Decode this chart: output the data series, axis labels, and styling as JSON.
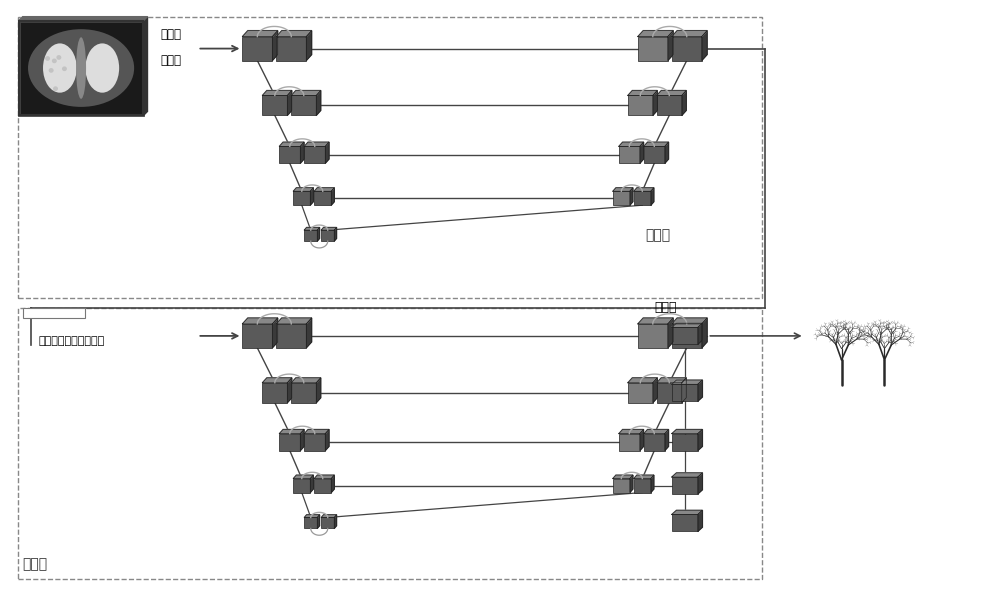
{
  "bg_color": "#ffffff",
  "box_color": "#5a5a5a",
  "box_color_light": "#7a7a7a",
  "line_color": "#444444",
  "dashed_color": "#888888",
  "stage1_label": "阶段一",
  "stage2_label": "阶段二",
  "resample_label": "重采样",
  "normalize_label": "归一化",
  "clip_label": "剪切，重采样，归一化",
  "postprocess_label": "后处理",
  "figsize": [
    10.0,
    5.9
  ],
  "dpi": 100
}
